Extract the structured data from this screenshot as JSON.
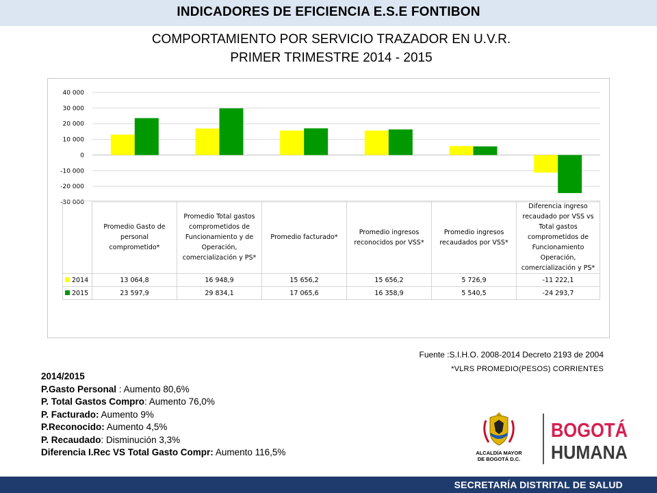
{
  "header": {
    "title": "INDICADORES DE EFICIENCIA E.S.E FONTIBON",
    "subtitle_line1": "COMPORTAMIENTO POR SERVICIO TRAZADOR EN U.V.R.",
    "subtitle_line2": "PRIMER TRIMESTRE 2014 - 2015"
  },
  "chart_data": {
    "type": "bar",
    "categories": [
      "Promedio Gasto de personal comprometido*",
      "Promedio Total gastos comprometidos de Funcionamiento y de Operación, comercialización y PS*",
      "Promedio facturado*",
      "Promedio ingresos reconocidos por VSS*",
      "Promedio ingresos recaudados por VSS*",
      "Diferencia ingreso recaudado por VSS vs Total gastos comprometidos de Funcionamiento Operación, comercialización y PS*"
    ],
    "series": [
      {
        "name": "2014",
        "color": "#ffff00",
        "values": [
          13064.8,
          16948.9,
          15656.2,
          15656.2,
          5726.9,
          -11222.1
        ],
        "labels": [
          "13 064,8",
          "16 948,9",
          "15 656,2",
          "15 656,2",
          "5 726,9",
          "-11 222,1"
        ]
      },
      {
        "name": "2015",
        "color": "#009900",
        "values": [
          23597.9,
          29834.1,
          17065.6,
          16358.9,
          5540.5,
          -24293.7
        ],
        "labels": [
          "23 597,9",
          "29 834,1",
          "17 065,6",
          "16 358,9",
          "5 540,5",
          "-24 293,7"
        ]
      }
    ],
    "ylim": [
      -30000,
      40000
    ],
    "yticks": [
      40000,
      30000,
      20000,
      10000,
      0,
      -10000,
      -20000,
      -30000
    ],
    "ytick_labels": [
      "40 000",
      "30 000",
      "20 000",
      "10 000",
      "0",
      "-10 000",
      "-20 000",
      "-30 000"
    ],
    "grid": true,
    "legend": "data table"
  },
  "source": {
    "text": "Fuente :S.I.H.O. 2008-2014  Decreto 2193 de 2004",
    "note": "*VLRS PROMEDIO(PESOS) CORRIENTES"
  },
  "summary": {
    "heading": "2014/2015",
    "lines": [
      {
        "label": "P.Gasto Personal",
        "text": " : Aumento 80,6%"
      },
      {
        "label": "P. Total Gastos Compro",
        "text": ": Aumento 76,0%"
      },
      {
        "label": "P. Facturado:",
        "text": " Aumento 9%"
      },
      {
        "label": "P.Reconocido:",
        "text": " Aumento 4,5%"
      },
      {
        "label": "P. Recaudado",
        "text": ":  Disminución 3,3%"
      },
      {
        "label": "Diferencia I.Rec VS Total Gasto Compr:",
        "text": " Aumento 116,5%"
      }
    ]
  },
  "logos": {
    "alcaldia_line1": "ALCALDÍA MAYOR",
    "alcaldia_line2": "DE BOGOTÁ D.C.",
    "bogota_word": "BOGOTÁ",
    "humana_word": "HUMANA",
    "escudo_icon": "coat-of-arms-icon"
  },
  "footer": {
    "text": "SECRETARÍA DISTRITAL DE SALUD"
  }
}
